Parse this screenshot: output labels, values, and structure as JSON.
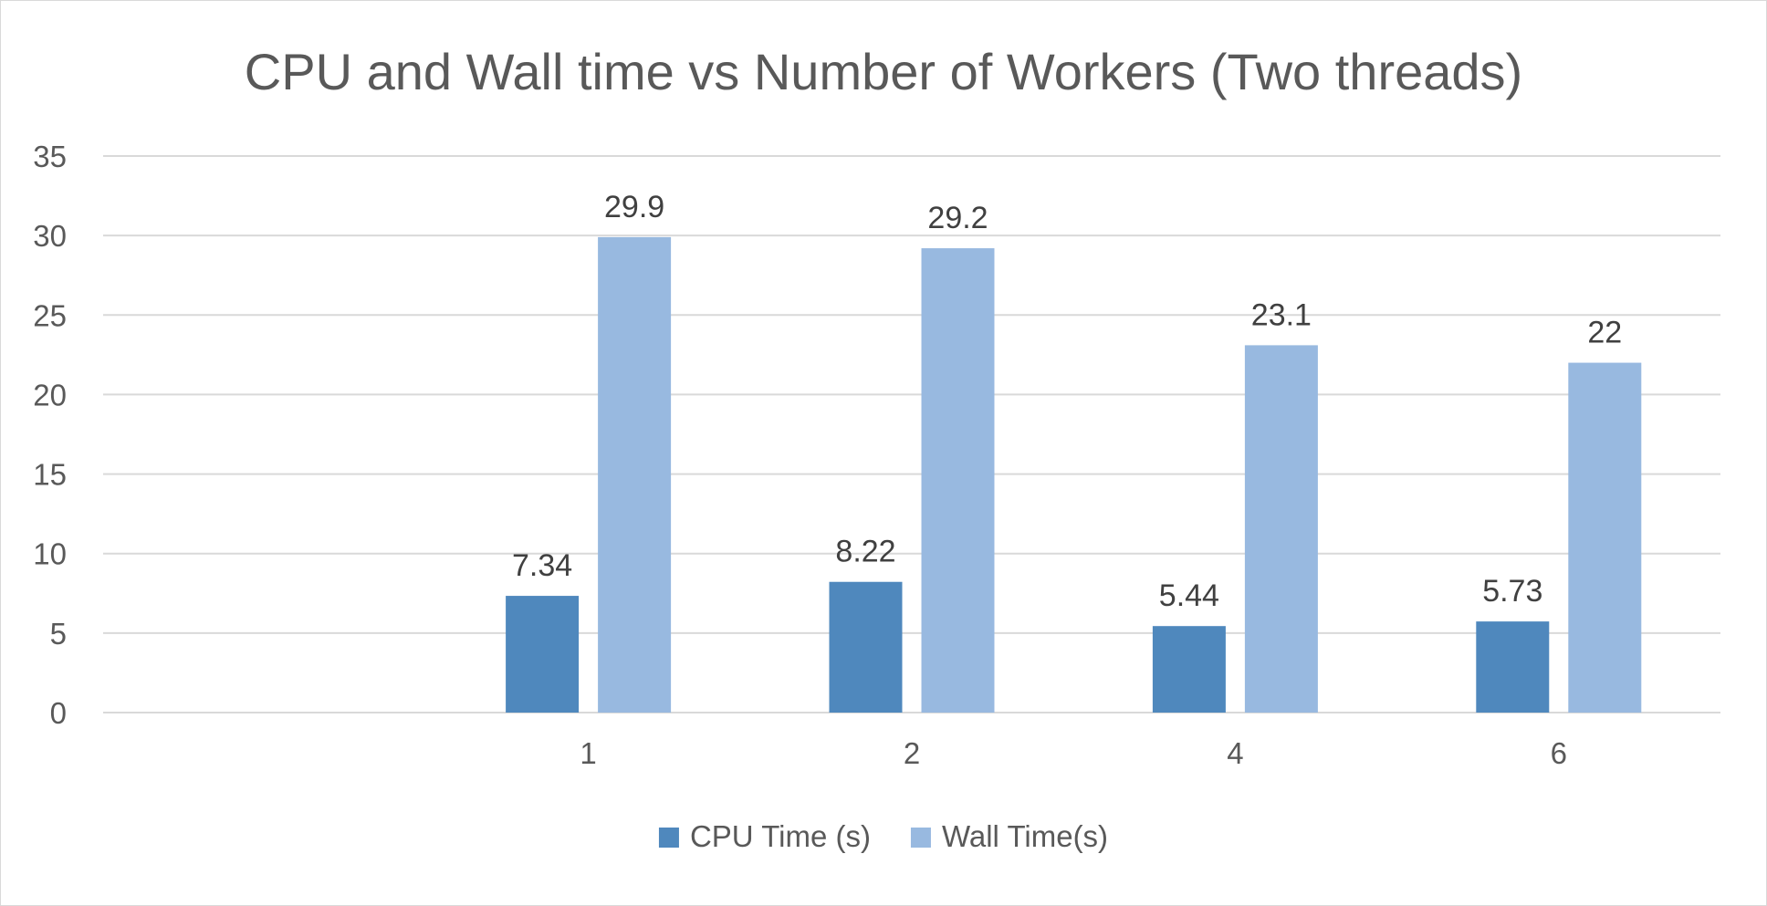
{
  "chart_data": {
    "type": "bar",
    "title": "CPU and Wall time vs Number of Workers (Two threads)",
    "xlabel": "",
    "ylabel": "",
    "categories": [
      "",
      "1",
      "2",
      "4",
      "6"
    ],
    "series": [
      {
        "name": "CPU Time (s)",
        "color": "#4f88bd",
        "values": [
          null,
          7.34,
          8.22,
          5.44,
          5.73
        ],
        "labels": [
          "",
          "7.34",
          "8.22",
          "5.44",
          "5.73"
        ]
      },
      {
        "name": "Wall Time(s)",
        "color": "#98b9e0",
        "values": [
          null,
          29.9,
          29.2,
          23.1,
          22
        ],
        "labels": [
          "",
          "29.9",
          "29.2",
          "23.1",
          "22"
        ]
      }
    ],
    "ylim": [
      0,
      35
    ],
    "yticks": [
      0,
      5,
      10,
      15,
      20,
      25,
      30,
      35
    ],
    "grid": true,
    "legend_position": "bottom"
  }
}
